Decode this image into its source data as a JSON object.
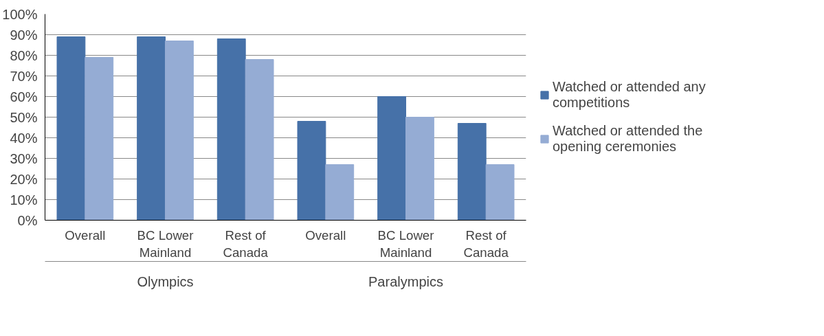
{
  "chart_data": {
    "type": "bar",
    "categories": [
      "Overall",
      "BC Lower Mainland",
      "Rest of Canada",
      "Overall",
      "BC Lower Mainland",
      "Rest of Canada"
    ],
    "series": [
      {
        "name": "Watched or attended any competitions",
        "color": "#4671a8",
        "values": [
          89,
          89,
          88,
          48,
          60,
          47
        ]
      },
      {
        "name": "Watched or attended the opening ceremonies",
        "color": "#95acd4",
        "values": [
          79,
          87,
          78,
          27,
          50,
          27
        ]
      }
    ],
    "ylim": [
      0,
      100
    ],
    "yticks": [
      {
        "value": 0,
        "label": "0%"
      },
      {
        "value": 10,
        "label": "10%"
      },
      {
        "value": 20,
        "label": "20%"
      },
      {
        "value": 30,
        "label": "30%"
      },
      {
        "value": 40,
        "label": "40%"
      },
      {
        "value": 50,
        "label": "50%"
      },
      {
        "value": 60,
        "label": "60%"
      },
      {
        "value": 70,
        "label": "70%"
      },
      {
        "value": 80,
        "label": "80%"
      },
      {
        "value": 90,
        "label": "90%"
      },
      {
        "value": 100,
        "label": "100%"
      }
    ],
    "grid": "y",
    "legend": "right",
    "annotations": [
      "Olympics",
      "Paralympics"
    ]
  }
}
